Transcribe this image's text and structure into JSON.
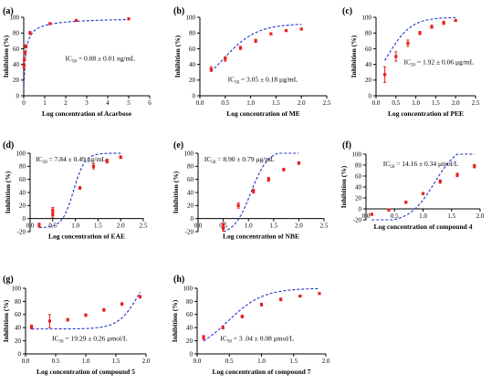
{
  "chart_data": [
    {
      "id": "a",
      "type": "scatter",
      "panel_label": "(a)",
      "xlabel": "Log concentration of Acarbose",
      "ylabel": "Inhibition (%)",
      "xlim": [
        0,
        6
      ],
      "ylim": [
        0,
        100
      ],
      "xticks": [
        0,
        1,
        2,
        3,
        4,
        5,
        6
      ],
      "yticks": [
        0,
        20,
        40,
        60,
        80,
        100
      ],
      "yaxis_at_zero": false,
      "ic50": {
        "prefix": "IC",
        "sub": "50",
        "text": " = 0.08 ± 0.01 ng/mL"
      },
      "ic50_pos": "upper-middle",
      "x": [
        0.01,
        0.03,
        0.06,
        0.1,
        0.3,
        1.25,
        2.5,
        5.0
      ],
      "y": [
        38,
        46,
        55,
        63,
        80,
        92,
        96,
        98
      ],
      "err": [
        3,
        2,
        2,
        2,
        2,
        1,
        1,
        1
      ],
      "fit": {
        "bottom": 0,
        "top": 100,
        "x0": 0.08,
        "hill": 0.85,
        "xlog": false
      }
    },
    {
      "id": "b",
      "type": "scatter",
      "panel_label": "(b)",
      "xlabel": "Log concentration of ME",
      "ylabel": "Inhibition (%)",
      "xlim": [
        0,
        2.5
      ],
      "ylim": [
        0,
        100
      ],
      "xticks": [
        0.0,
        0.5,
        1.0,
        1.5,
        2.0,
        2.5
      ],
      "yticks": [
        0,
        20,
        40,
        60,
        80,
        100
      ],
      "yaxis_at_zero": false,
      "ic50": {
        "prefix": "IC",
        "sub": "50",
        "text": " = 3.05 ± 0.18 μg/mL"
      },
      "ic50_pos": "lower-middle",
      "x": [
        0.22,
        0.5,
        0.8,
        1.1,
        1.4,
        1.7,
        2.0
      ],
      "y": [
        34,
        47,
        61,
        70,
        79,
        83,
        85
      ],
      "err": [
        3,
        3,
        2,
        2,
        1,
        1,
        1
      ],
      "fit": {
        "bottom": 0,
        "top": 92,
        "x0": 0.45,
        "hill": 1.3,
        "xlog": true
      }
    },
    {
      "id": "c",
      "type": "scatter",
      "panel_label": "(c)",
      "xlabel": "Log concentration of PEE",
      "ylabel": "Inhibition (%)",
      "xlim": [
        0,
        2.5
      ],
      "ylim": [
        0,
        100
      ],
      "xticks": [
        0.0,
        0.5,
        1.0,
        1.5,
        2.0,
        2.5
      ],
      "yticks": [
        0,
        20,
        40,
        60,
        80,
        100
      ],
      "yaxis_at_zero": false,
      "ic50": {
        "prefix": "IC",
        "sub": "50",
        "text": " = 1.92 ± 0.06 μg/mL"
      },
      "ic50_pos": "middle-right",
      "x": [
        0.22,
        0.5,
        0.8,
        1.1,
        1.4,
        1.7,
        2.0
      ],
      "y": [
        27,
        50,
        67,
        80,
        88,
        93,
        96
      ],
      "err": [
        10,
        6,
        4,
        2,
        2,
        2,
        1
      ],
      "fit": {
        "bottom": 0,
        "top": 100,
        "x0": 0.28,
        "hill": 1.45,
        "xlog": true
      }
    },
    {
      "id": "d",
      "type": "scatter",
      "panel_label": "(d)",
      "xlabel": "Log concentration of EAE",
      "ylabel": "Inhibition (%)",
      "xlim": [
        0,
        2.5
      ],
      "ylim": [
        -20,
        100
      ],
      "xticks": [
        0.0,
        0.5,
        1.0,
        1.5,
        2.0,
        2.5
      ],
      "yticks": [
        -20,
        0,
        20,
        40,
        60,
        80,
        100
      ],
      "yaxis_at_zero": false,
      "ic50": {
        "prefix": "IC",
        "sub": "50",
        "text": " = 7.84 ± 0.49 μg/mL"
      },
      "ic50_pos": "top-left",
      "x": [
        0.2,
        0.5,
        0.5,
        1.1,
        1.4,
        1.7,
        2.0
      ],
      "y": [
        -10,
        6,
        13,
        47,
        80,
        88,
        94
      ],
      "err": [
        3,
        4,
        4,
        2,
        4,
        3,
        2
      ],
      "fit": {
        "bottom": -14,
        "top": 100,
        "x0": 0.96,
        "hill": 3.5,
        "xlog": false
      }
    },
    {
      "id": "e",
      "type": "scatter",
      "panel_label": "(e)",
      "xlabel": "Log concentration of NBE",
      "ylabel": "Inhibition (%)",
      "xlim": [
        0,
        2.5
      ],
      "ylim": [
        -20,
        100
      ],
      "xticks": [
        0.0,
        0.5,
        1.0,
        1.5,
        2.0,
        2.5
      ],
      "yticks": [
        -20,
        0,
        20,
        40,
        60,
        80,
        100
      ],
      "yaxis_at_zero": false,
      "ic50": {
        "prefix": "IC",
        "sub": "50",
        "text": " = 8.90 ± 0.79 μg/mL"
      },
      "ic50_pos": "top-left",
      "x": [
        0.5,
        0.5,
        0.8,
        1.1,
        1.4,
        1.7,
        2.0
      ],
      "y": [
        -15,
        -10,
        20,
        42,
        60,
        75,
        85
      ],
      "err": [
        4,
        4,
        4,
        3,
        3,
        2,
        2
      ],
      "fit": {
        "bottom": -25,
        "top": 105,
        "x0": 1.05,
        "hill": 2.6,
        "xlog": false
      }
    },
    {
      "id": "f",
      "type": "scatter",
      "panel_label": "(f)",
      "xlabel": "Log concentration of compound 4",
      "ylabel": "Inhibition (%)",
      "xlim": [
        0,
        2
      ],
      "ylim": [
        -20,
        100
      ],
      "xticks": [
        0.0,
        0.5,
        1.0,
        1.5,
        2.0
      ],
      "yticks": [
        -20,
        0,
        20,
        40,
        60,
        80,
        100
      ],
      "yaxis_at_zero": true,
      "ic50": {
        "prefix": "IC",
        "sub": "50",
        "text": " = 14.16 ± 0.34 μmol/L"
      },
      "ic50_pos": "top-left",
      "x": [
        0.1,
        0.4,
        0.7,
        1.0,
        1.3,
        1.6,
        1.9
      ],
      "y": [
        -10,
        -2,
        12,
        28,
        50,
        62,
        78
      ],
      "err": [
        2,
        2,
        2,
        2,
        3,
        3,
        3
      ],
      "fit": {
        "bottom": -25,
        "top": 120,
        "x0": 1.2,
        "hill": 2.0,
        "xlog": false
      }
    },
    {
      "id": "g",
      "type": "scatter",
      "panel_label": "(g)",
      "xlabel": "Log concentration of compound 5",
      "ylabel": "Inhibition (%)",
      "xlim": [
        0,
        2
      ],
      "ylim": [
        0,
        100
      ],
      "xticks": [
        0.0,
        0.5,
        1.0,
        1.5,
        2.0
      ],
      "yticks": [
        0,
        20,
        40,
        60,
        80,
        100
      ],
      "yaxis_at_zero": false,
      "ic50": {
        "prefix": "IC",
        "sub": "50",
        "text": " = 19.29 ± 0.26 μmol/L"
      },
      "ic50_pos": "lower-middle",
      "x": [
        0.1,
        0.4,
        0.7,
        1.0,
        1.3,
        1.6,
        1.9
      ],
      "y": [
        41,
        50,
        52,
        59,
        67,
        76,
        87
      ],
      "err": [
        3,
        10,
        2,
        2,
        2,
        2,
        2
      ],
      "fit": {
        "bottom": 38,
        "top": 150,
        "x0": 1.9,
        "hill": 2.5,
        "xlog": false
      }
    },
    {
      "id": "h",
      "type": "scatter",
      "panel_label": "(h)",
      "xlabel": "Log concentration of compound 7",
      "ylabel": "Inhibition (%)",
      "xlim": [
        0,
        2
      ],
      "ylim": [
        0,
        100
      ],
      "xticks": [
        0.0,
        0.5,
        1.0,
        1.5,
        2.0
      ],
      "yticks": [
        0,
        20,
        40,
        60,
        80,
        100
      ],
      "yaxis_at_zero": false,
      "ic50": {
        "prefix": "IC",
        "sub": "50",
        "text": " = 3 .04 ± 0.08 μmol/L"
      },
      "ic50_pos": "lower-middle",
      "x": [
        0.1,
        0.4,
        0.7,
        1.0,
        1.3,
        1.6,
        1.9
      ],
      "y": [
        25,
        40,
        57,
        75,
        83,
        88,
        92
      ],
      "err": [
        3,
        2,
        2,
        2,
        2,
        1,
        1
      ],
      "fit": {
        "bottom": 0,
        "top": 100,
        "x0": 0.48,
        "hill": 1.6,
        "xlog": true
      }
    }
  ],
  "colors": {
    "marker": "#e8201c",
    "fit_line": "#2233cc",
    "axis": "#000000"
  }
}
